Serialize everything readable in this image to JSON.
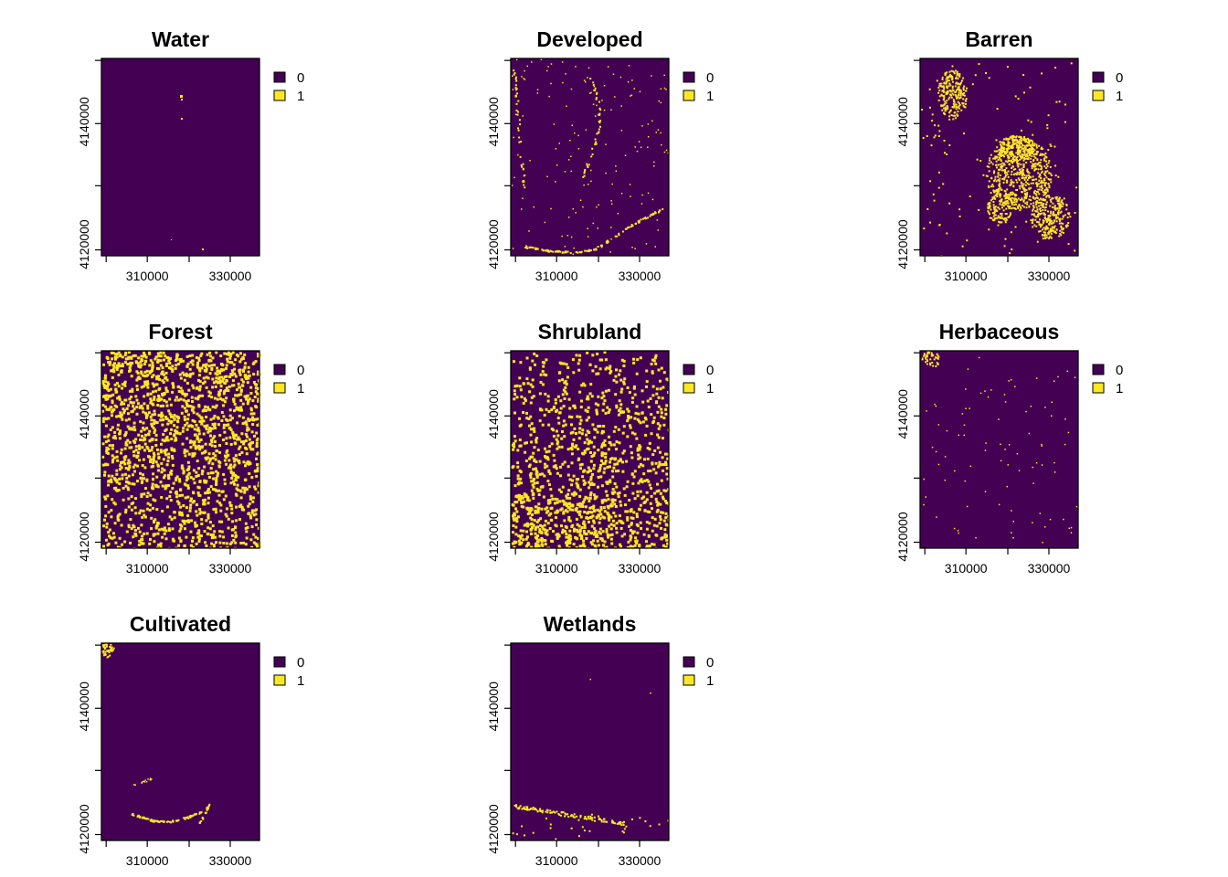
{
  "colors": {
    "class_0": "#440154",
    "class_1": "#FDE725",
    "frame": "#000000",
    "background": "#ffffff"
  },
  "chart_data": [
    {
      "type": "heatmap",
      "title": "Water",
      "x_ticks": [
        "310000",
        "330000"
      ],
      "y_ticks": [
        "4140000",
        "4120000"
      ],
      "legend": [
        "0",
        "1"
      ],
      "class_1_fraction": 0.001
    },
    {
      "type": "heatmap",
      "title": "Developed",
      "x_ticks": [
        "310000",
        "330000"
      ],
      "y_ticks": [
        "4140000",
        "4120000"
      ],
      "legend": [
        "0",
        "1"
      ],
      "class_1_fraction": 0.02
    },
    {
      "type": "heatmap",
      "title": "Barren",
      "x_ticks": [
        "310000",
        "330000"
      ],
      "y_ticks": [
        "4140000",
        "4120000"
      ],
      "legend": [
        "0",
        "1"
      ],
      "class_1_fraction": 0.12
    },
    {
      "type": "heatmap",
      "title": "Forest",
      "x_ticks": [
        "310000",
        "330000"
      ],
      "y_ticks": [
        "4140000",
        "4120000"
      ],
      "legend": [
        "0",
        "1"
      ],
      "class_1_fraction": 0.55
    },
    {
      "type": "heatmap",
      "title": "Shrubland",
      "x_ticks": [
        "310000",
        "330000"
      ],
      "y_ticks": [
        "4140000",
        "4120000"
      ],
      "legend": [
        "0",
        "1"
      ],
      "class_1_fraction": 0.35
    },
    {
      "type": "heatmap",
      "title": "Herbaceous",
      "x_ticks": [
        "310000",
        "330000"
      ],
      "y_ticks": [
        "4140000",
        "4120000"
      ],
      "legend": [
        "0",
        "1"
      ],
      "class_1_fraction": 0.01
    },
    {
      "type": "heatmap",
      "title": "Cultivated",
      "x_ticks": [
        "310000",
        "330000"
      ],
      "y_ticks": [
        "4140000",
        "4120000"
      ],
      "legend": [
        "0",
        "1"
      ],
      "class_1_fraction": 0.01
    },
    {
      "type": "heatmap",
      "title": "Wetlands",
      "x_ticks": [
        "310000",
        "330000"
      ],
      "y_ticks": [
        "4140000",
        "4120000"
      ],
      "legend": [
        "0",
        "1"
      ],
      "class_1_fraction": 0.01
    }
  ]
}
